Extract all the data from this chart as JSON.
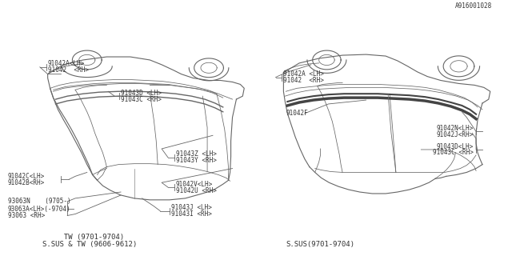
{
  "bg_color": "#ffffff",
  "line_color": "#666666",
  "text_color": "#333333",
  "fig_width": 6.4,
  "fig_height": 3.2,
  "dpi": 100,
  "title_left_line1": "S.SUS & TW (9606-9612)",
  "title_left_line2": "     TW (9701-9704)",
  "title_right": "S.SUS(9701-9704)",
  "footnote": "A916001028",
  "font_size_label": 5.5,
  "font_size_title": 6.5,
  "font_size_note": 5.5
}
